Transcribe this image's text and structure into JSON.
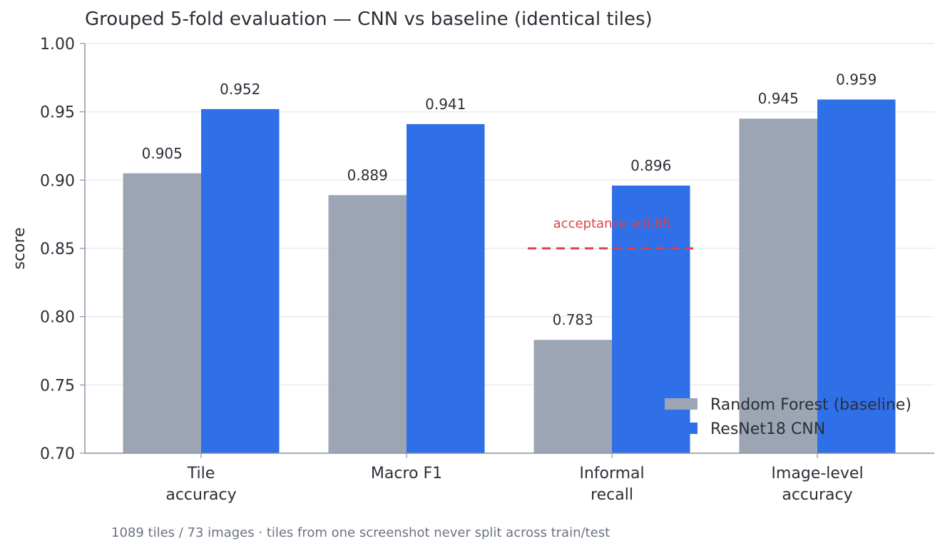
{
  "chart_data": {
    "type": "bar",
    "title": "Grouped 5-fold evaluation — CNN vs baseline (identical tiles)",
    "ylabel": "score",
    "xlabel": "",
    "ylim": [
      0.7,
      1.0
    ],
    "yticks": [
      "0.70",
      "0.75",
      "0.80",
      "0.85",
      "0.90",
      "0.95",
      "1.00"
    ],
    "ytick_values": [
      0.7,
      0.75,
      0.8,
      0.85,
      0.9,
      0.95,
      1.0
    ],
    "grid": "horizontal",
    "legend_position": "bottom-right",
    "categories": [
      [
        "Tile",
        "accuracy"
      ],
      [
        "Macro F1"
      ],
      [
        "Informal",
        "recall"
      ],
      [
        "Image-level",
        "accuracy"
      ]
    ],
    "series": [
      {
        "name": "Random Forest (baseline)",
        "color": "#9ca5b3",
        "values": [
          0.905,
          0.889,
          0.783,
          0.945
        ],
        "labels": [
          "0.905",
          "0.889",
          "0.783",
          "0.945"
        ]
      },
      {
        "name": "ResNet18 CNN",
        "color": "#2f6fe8",
        "values": [
          0.952,
          0.941,
          0.896,
          0.959
        ],
        "labels": [
          "0.952",
          "0.941",
          "0.896",
          "0.959"
        ]
      }
    ],
    "reference_line": {
      "value": 0.85,
      "category_index": 2,
      "label": "acceptance ≥0.85",
      "color": "#e0404a"
    },
    "footnote": "1089 tiles / 73 images · tiles from one screenshot never split across train/test"
  }
}
